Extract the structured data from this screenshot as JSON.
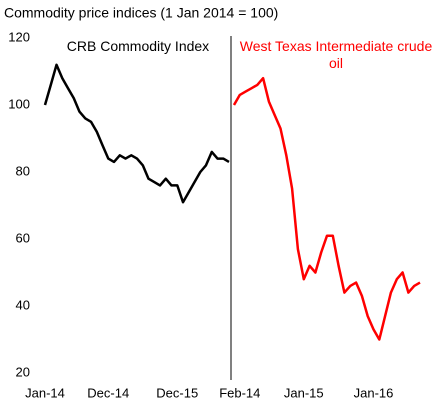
{
  "title": "Commodity price indices (1 Jan 2014 = 100)",
  "chart_data": [
    {
      "type": "line",
      "x": [
        "2014-01",
        "2014-02",
        "2014-03",
        "2014-04",
        "2014-05",
        "2014-06",
        "2014-07",
        "2014-08",
        "2014-09",
        "2014-10",
        "2014-11",
        "2014-12",
        "2015-01",
        "2015-02",
        "2015-03",
        "2015-04",
        "2015-05",
        "2015-06",
        "2015-07",
        "2015-08",
        "2015-09",
        "2015-10",
        "2015-11",
        "2015-12",
        "2016-01",
        "2016-02",
        "2016-03",
        "2016-04",
        "2016-05",
        "2016-06",
        "2016-07",
        "2016-08",
        "2016-09"
      ],
      "series": [
        {
          "name": "CRB Commodity Index",
          "color": "#000000",
          "values": [
            100,
            106,
            112,
            108,
            105,
            102,
            98,
            96,
            95,
            92,
            88,
            84,
            83,
            85,
            84,
            85,
            84,
            82,
            78,
            77,
            76,
            78,
            76,
            76,
            71,
            74,
            77,
            80,
            82,
            86,
            84,
            84,
            83
          ]
        }
      ],
      "xlim": [
        "2014-01",
        "2016-09"
      ],
      "xticks": [
        {
          "value": "2014-01",
          "label": "Jan-14"
        },
        {
          "value": "2014-12",
          "label": "Dec-14"
        },
        {
          "value": "2015-12",
          "label": "Dec-15"
        }
      ],
      "ylim": [
        20,
        120
      ],
      "yticks": [
        20,
        40,
        60,
        80,
        100,
        120
      ]
    },
    {
      "type": "line",
      "x": [
        "2014-01",
        "2014-02",
        "2014-03",
        "2014-04",
        "2014-05",
        "2014-06",
        "2014-07",
        "2014-08",
        "2014-09",
        "2014-10",
        "2014-11",
        "2014-12",
        "2015-01",
        "2015-02",
        "2015-03",
        "2015-04",
        "2015-05",
        "2015-06",
        "2015-07",
        "2015-08",
        "2015-09",
        "2015-10",
        "2015-11",
        "2015-12",
        "2016-01",
        "2016-02",
        "2016-03",
        "2016-04",
        "2016-05",
        "2016-06",
        "2016-07",
        "2016-08",
        "2016-09"
      ],
      "series": [
        {
          "name": "West Texas Intermediate crude oil",
          "color": "#ff0000",
          "values": [
            100,
            103,
            104,
            105,
            106,
            108,
            101,
            97,
            93,
            85,
            75,
            57,
            48,
            52,
            50,
            56,
            61,
            61,
            52,
            44,
            46,
            47,
            43,
            37,
            33,
            30,
            37,
            44,
            48,
            50,
            44,
            46,
            47
          ]
        }
      ],
      "xlim": [
        "2014-01",
        "2016-09"
      ],
      "xticks": [
        {
          "value": "2014-02",
          "label": "Feb-14"
        },
        {
          "value": "2015-01",
          "label": "Jan-15"
        },
        {
          "value": "2016-01",
          "label": "Jan-16"
        }
      ],
      "ylim": [
        20,
        120
      ]
    }
  ]
}
